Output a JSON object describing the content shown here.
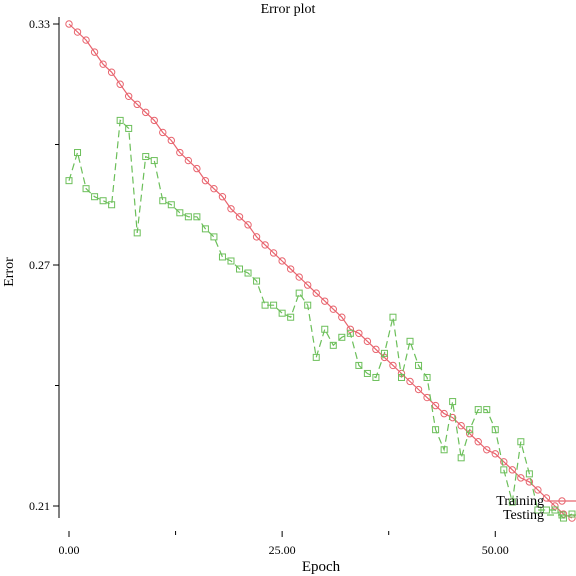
{
  "chart_data": {
    "type": "line",
    "title": "Error plot",
    "xlabel": "Epoch",
    "ylabel": "Error",
    "xlim": [
      0,
      59
    ],
    "ylim": [
      0.21,
      0.33
    ],
    "x_ticks": [
      {
        "value": 0,
        "label": "0.00"
      },
      {
        "value": 25,
        "label": "25.00"
      },
      {
        "value": 50,
        "label": "50.00"
      }
    ],
    "y_ticks": [
      {
        "value": 0.33,
        "label": "0.33"
      },
      {
        "value": 0.27,
        "label": "0.27"
      },
      {
        "value": 0.21,
        "label": "0.21"
      }
    ],
    "y_minor_ticks": [
      0.3,
      0.24
    ],
    "x_minor_ticks": [
      12.5,
      37.5
    ],
    "legend_position": "bottom-right",
    "series": [
      {
        "name": "Training",
        "color": "#e8646e",
        "style": "solid",
        "marker": "circle",
        "x": [
          0,
          1,
          2,
          3,
          4,
          5,
          6,
          7,
          8,
          9,
          10,
          11,
          12,
          13,
          14,
          15,
          16,
          17,
          18,
          19,
          20,
          21,
          22,
          23,
          24,
          25,
          26,
          27,
          28,
          29,
          30,
          31,
          32,
          33,
          34,
          35,
          36,
          37,
          38,
          39,
          40,
          41,
          42,
          43,
          44,
          45,
          46,
          47,
          48,
          49,
          50,
          51,
          52,
          53,
          54,
          55,
          56,
          57,
          58,
          59
        ],
        "y": [
          0.33,
          0.328,
          0.326,
          0.323,
          0.32,
          0.318,
          0.315,
          0.312,
          0.31,
          0.308,
          0.306,
          0.303,
          0.301,
          0.298,
          0.296,
          0.294,
          0.291,
          0.289,
          0.287,
          0.284,
          0.282,
          0.28,
          0.277,
          0.275,
          0.273,
          0.271,
          0.269,
          0.267,
          0.265,
          0.263,
          0.261,
          0.259,
          0.257,
          0.254,
          0.253,
          0.251,
          0.249,
          0.247,
          0.245,
          0.243,
          0.241,
          0.239,
          0.237,
          0.235,
          0.233,
          0.232,
          0.23,
          0.228,
          0.226,
          0.224,
          0.223,
          0.221,
          0.219,
          0.217,
          0.216,
          0.214,
          0.212,
          0.21,
          0.208,
          0.207
        ]
      },
      {
        "name": "Testing",
        "color": "#6cbf5a",
        "style": "dashed",
        "marker": "square",
        "x": [
          0,
          1,
          2,
          3,
          4,
          5,
          6,
          7,
          8,
          9,
          10,
          11,
          12,
          13,
          14,
          15,
          16,
          17,
          18,
          19,
          20,
          21,
          22,
          23,
          24,
          25,
          26,
          27,
          28,
          29,
          30,
          31,
          32,
          33,
          34,
          35,
          36,
          37,
          38,
          39,
          40,
          41,
          42,
          43,
          44,
          45,
          46,
          47,
          48,
          49,
          50,
          51,
          52,
          53,
          54,
          55,
          56,
          57,
          58,
          59
        ],
        "y": [
          0.291,
          0.298,
          0.289,
          0.287,
          0.286,
          0.285,
          0.306,
          0.304,
          0.278,
          0.297,
          0.296,
          0.286,
          0.285,
          0.283,
          0.282,
          0.282,
          0.279,
          0.277,
          0.272,
          0.271,
          0.269,
          0.268,
          0.266,
          0.26,
          0.26,
          0.258,
          0.257,
          0.263,
          0.26,
          0.247,
          0.254,
          0.25,
          0.252,
          0.253,
          0.245,
          0.243,
          0.242,
          0.248,
          0.257,
          0.242,
          0.251,
          0.245,
          0.242,
          0.229,
          0.224,
          0.236,
          0.222,
          0.229,
          0.234,
          0.234,
          0.229,
          0.219,
          0.211,
          0.226,
          0.218,
          0.209,
          0.209,
          0.209,
          0.207,
          0.208
        ]
      }
    ]
  }
}
